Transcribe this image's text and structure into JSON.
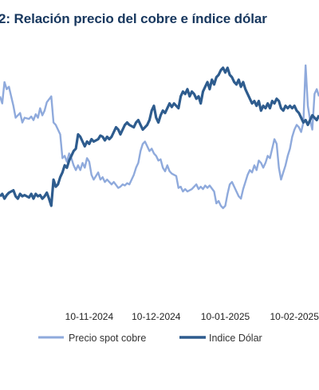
{
  "chart_data": {
    "type": "line",
    "title": "2: Relación precio del cobre e índice dólar",
    "x_tick_labels": [
      "10-11-2024",
      "10-12-2024",
      "10-01-2025",
      "10-02-2025"
    ],
    "x_tick_dates": [
      "2024-11-10",
      "2024-12-10",
      "2025-01-10",
      "2025-02-10"
    ],
    "xlim": [
      "2024-10-01",
      "2025-02-21"
    ],
    "y_axis_labels_visible": false,
    "grid": false,
    "legend_position": "bottom",
    "series": [
      {
        "name": "Precio spot cobre",
        "color": "#8FAADC",
        "points": [
          [
            "2024-10-01",
            0.8
          ],
          [
            "2024-10-02",
            0.74
          ],
          [
            "2024-10-03",
            0.92
          ],
          [
            "2024-10-04",
            0.86
          ],
          [
            "2024-10-05",
            0.88
          ],
          [
            "2024-10-07",
            0.72
          ],
          [
            "2024-10-08",
            0.62
          ],
          [
            "2024-10-10",
            0.66
          ],
          [
            "2024-10-11",
            0.58
          ],
          [
            "2024-10-12",
            0.62
          ],
          [
            "2024-10-14",
            0.61
          ],
          [
            "2024-10-15",
            0.63
          ],
          [
            "2024-10-16",
            0.6
          ],
          [
            "2024-10-17",
            0.65
          ],
          [
            "2024-10-18",
            0.62
          ],
          [
            "2024-10-19",
            0.7
          ],
          [
            "2024-10-20",
            0.64
          ],
          [
            "2024-10-21",
            0.68
          ],
          [
            "2024-10-22",
            0.75
          ],
          [
            "2024-10-24",
            0.8
          ],
          [
            "2024-10-25",
            0.58
          ],
          [
            "2024-10-26",
            0.56
          ],
          [
            "2024-10-27",
            0.52
          ],
          [
            "2024-10-28",
            0.48
          ],
          [
            "2024-10-29",
            0.28
          ],
          [
            "2024-10-30",
            0.3
          ],
          [
            "2024-10-31",
            0.25
          ],
          [
            "2024-11-01",
            0.32
          ],
          [
            "2024-11-02",
            0.28
          ],
          [
            "2024-11-03",
            0.22
          ],
          [
            "2024-11-04",
            0.18
          ],
          [
            "2024-11-05",
            0.22
          ],
          [
            "2024-11-06",
            0.18
          ],
          [
            "2024-11-07",
            0.24
          ],
          [
            "2024-11-08",
            0.2
          ],
          [
            "2024-11-09",
            0.28
          ],
          [
            "2024-11-10",
            0.25
          ],
          [
            "2024-11-11",
            0.14
          ],
          [
            "2024-11-12",
            0.1
          ],
          [
            "2024-11-14",
            0.16
          ],
          [
            "2024-11-15",
            0.1
          ],
          [
            "2024-11-16",
            0.12
          ],
          [
            "2024-11-17",
            0.08
          ],
          [
            "2024-11-18",
            0.1
          ],
          [
            "2024-11-20",
            0.06
          ],
          [
            "2024-11-21",
            0.08
          ],
          [
            "2024-11-23",
            0.03
          ],
          [
            "2024-11-24",
            0.04
          ],
          [
            "2024-11-25",
            0.06
          ],
          [
            "2024-11-26",
            0.05
          ],
          [
            "2024-11-27",
            0.07
          ],
          [
            "2024-11-28",
            0.06
          ],
          [
            "2024-11-29",
            0.1
          ],
          [
            "2024-11-30",
            0.14
          ],
          [
            "2024-12-01",
            0.2
          ],
          [
            "2024-12-02",
            0.24
          ],
          [
            "2024-12-03",
            0.34
          ],
          [
            "2024-12-04",
            0.4
          ],
          [
            "2024-12-05",
            0.42
          ],
          [
            "2024-12-06",
            0.38
          ],
          [
            "2024-12-07",
            0.34
          ],
          [
            "2024-12-08",
            0.36
          ],
          [
            "2024-12-09",
            0.32
          ],
          [
            "2024-12-10",
            0.3
          ],
          [
            "2024-12-11",
            0.26
          ],
          [
            "2024-12-12",
            0.27
          ],
          [
            "2024-12-13",
            0.2
          ],
          [
            "2024-12-14",
            0.17
          ],
          [
            "2024-12-15",
            0.22
          ],
          [
            "2024-12-16",
            0.17
          ],
          [
            "2024-12-17",
            0.15
          ],
          [
            "2024-12-19",
            0.13
          ],
          [
            "2024-12-20",
            0.03
          ],
          [
            "2024-12-21",
            0.04
          ],
          [
            "2024-12-22",
            0.0
          ],
          [
            "2024-12-23",
            0.02
          ],
          [
            "2024-12-24",
            0.0
          ],
          [
            "2024-12-26",
            0.02
          ],
          [
            "2024-12-27",
            0.04
          ],
          [
            "2024-12-28",
            0.06
          ],
          [
            "2024-12-29",
            0.02
          ],
          [
            "2024-12-30",
            0.04
          ],
          [
            "2024-12-31",
            0.02
          ],
          [
            "2025-01-01",
            0.05
          ],
          [
            "2025-01-02",
            0.03
          ],
          [
            "2025-01-03",
            0.05
          ],
          [
            "2025-01-05",
            0.0
          ],
          [
            "2025-01-06",
            -0.1
          ],
          [
            "2025-01-07",
            -0.08
          ],
          [
            "2025-01-08",
            -0.12
          ],
          [
            "2025-01-09",
            -0.14
          ],
          [
            "2025-01-10",
            -0.12
          ],
          [
            "2025-01-11",
            -0.02
          ],
          [
            "2025-01-12",
            0.06
          ],
          [
            "2025-01-13",
            0.08
          ],
          [
            "2025-01-14",
            0.04
          ],
          [
            "2025-01-15",
            0.0
          ],
          [
            "2025-01-16",
            -0.04
          ],
          [
            "2025-01-17",
            -0.06
          ],
          [
            "2025-01-18",
            0.02
          ],
          [
            "2025-01-19",
            0.08
          ],
          [
            "2025-01-20",
            0.14
          ],
          [
            "2025-01-21",
            0.18
          ],
          [
            "2025-01-22",
            0.16
          ],
          [
            "2025-01-23",
            0.22
          ],
          [
            "2025-01-24",
            0.18
          ],
          [
            "2025-01-25",
            0.26
          ],
          [
            "2025-01-26",
            0.24
          ],
          [
            "2025-01-27",
            0.2
          ],
          [
            "2025-01-28",
            0.24
          ],
          [
            "2025-01-29",
            0.3
          ],
          [
            "2025-01-30",
            0.28
          ],
          [
            "2025-01-31",
            0.36
          ],
          [
            "2025-02-01",
            0.44
          ],
          [
            "2025-02-02",
            0.4
          ],
          [
            "2025-02-03",
            0.2
          ],
          [
            "2025-02-04",
            0.1
          ],
          [
            "2025-02-05",
            0.16
          ],
          [
            "2025-02-06",
            0.22
          ],
          [
            "2025-02-07",
            0.3
          ],
          [
            "2025-02-08",
            0.36
          ],
          [
            "2025-02-09",
            0.46
          ],
          [
            "2025-02-10",
            0.52
          ],
          [
            "2025-02-11",
            0.56
          ],
          [
            "2025-02-12",
            0.54
          ],
          [
            "2025-02-13",
            0.5
          ],
          [
            "2025-02-14",
            0.58
          ],
          [
            "2025-02-15",
            1.06
          ],
          [
            "2025-02-16",
            0.72
          ],
          [
            "2025-02-17",
            0.6
          ],
          [
            "2025-02-18",
            0.52
          ],
          [
            "2025-02-19",
            0.82
          ],
          [
            "2025-02-20",
            0.86
          ],
          [
            "2025-02-21",
            0.8
          ]
        ]
      },
      {
        "name": "Indice Dólar",
        "color": "#2E5C8E",
        "points": [
          [
            "2024-10-01",
            -0.04
          ],
          [
            "2024-10-02",
            -0.02
          ],
          [
            "2024-10-03",
            -0.06
          ],
          [
            "2024-10-04",
            -0.03
          ],
          [
            "2024-10-05",
            -0.01
          ],
          [
            "2024-10-07",
            0.01
          ],
          [
            "2024-10-08",
            -0.04
          ],
          [
            "2024-10-09",
            -0.06
          ],
          [
            "2024-10-10",
            -0.02
          ],
          [
            "2024-10-11",
            -0.04
          ],
          [
            "2024-10-12",
            -0.03
          ],
          [
            "2024-10-14",
            -0.05
          ],
          [
            "2024-10-15",
            -0.02
          ],
          [
            "2024-10-16",
            -0.06
          ],
          [
            "2024-10-17",
            -0.02
          ],
          [
            "2024-10-18",
            -0.04
          ],
          [
            "2024-10-19",
            -0.03
          ],
          [
            "2024-10-20",
            -0.06
          ],
          [
            "2024-10-21",
            -0.04
          ],
          [
            "2024-10-22",
            -0.01
          ],
          [
            "2024-10-23",
            -0.06
          ],
          [
            "2024-10-24",
            -0.12
          ],
          [
            "2024-10-25",
            0.1
          ],
          [
            "2024-10-26",
            0.04
          ],
          [
            "2024-10-27",
            0.06
          ],
          [
            "2024-10-28",
            0.12
          ],
          [
            "2024-10-29",
            0.16
          ],
          [
            "2024-10-30",
            0.22
          ],
          [
            "2024-10-31",
            0.2
          ],
          [
            "2024-11-01",
            0.26
          ],
          [
            "2024-11-02",
            0.3
          ],
          [
            "2024-11-03",
            0.34
          ],
          [
            "2024-11-04",
            0.36
          ],
          [
            "2024-11-05",
            0.48
          ],
          [
            "2024-11-06",
            0.46
          ],
          [
            "2024-11-07",
            0.42
          ],
          [
            "2024-11-08",
            0.38
          ],
          [
            "2024-11-09",
            0.42
          ],
          [
            "2024-11-10",
            0.4
          ],
          [
            "2024-11-11",
            0.44
          ],
          [
            "2024-11-12",
            0.42
          ],
          [
            "2024-11-14",
            0.44
          ],
          [
            "2024-11-15",
            0.47
          ],
          [
            "2024-11-16",
            0.46
          ],
          [
            "2024-11-17",
            0.43
          ],
          [
            "2024-11-18",
            0.46
          ],
          [
            "2024-11-19",
            0.44
          ],
          [
            "2024-11-20",
            0.46
          ],
          [
            "2024-11-21",
            0.5
          ],
          [
            "2024-11-22",
            0.54
          ],
          [
            "2024-11-23",
            0.52
          ],
          [
            "2024-11-24",
            0.48
          ],
          [
            "2024-11-25",
            0.52
          ],
          [
            "2024-11-26",
            0.56
          ],
          [
            "2024-11-27",
            0.58
          ],
          [
            "2024-11-28",
            0.56
          ],
          [
            "2024-11-29",
            0.55
          ],
          [
            "2024-11-30",
            0.54
          ],
          [
            "2024-12-01",
            0.58
          ],
          [
            "2024-12-02",
            0.6
          ],
          [
            "2024-12-03",
            0.56
          ],
          [
            "2024-12-04",
            0.52
          ],
          [
            "2024-12-05",
            0.54
          ],
          [
            "2024-12-06",
            0.56
          ],
          [
            "2024-12-07",
            0.6
          ],
          [
            "2024-12-08",
            0.68
          ],
          [
            "2024-12-09",
            0.72
          ],
          [
            "2024-12-10",
            0.62
          ],
          [
            "2024-12-11",
            0.58
          ],
          [
            "2024-12-12",
            0.64
          ],
          [
            "2024-12-13",
            0.68
          ],
          [
            "2024-12-14",
            0.66
          ],
          [
            "2024-12-15",
            0.7
          ],
          [
            "2024-12-16",
            0.74
          ],
          [
            "2024-12-17",
            0.71
          ],
          [
            "2024-12-18",
            0.74
          ],
          [
            "2024-12-19",
            0.72
          ],
          [
            "2024-12-20",
            0.7
          ],
          [
            "2024-12-21",
            0.8
          ],
          [
            "2024-12-22",
            0.84
          ],
          [
            "2024-12-23",
            0.82
          ],
          [
            "2024-12-24",
            0.86
          ],
          [
            "2024-12-25",
            0.8
          ],
          [
            "2024-12-26",
            0.84
          ],
          [
            "2024-12-27",
            0.82
          ],
          [
            "2024-12-28",
            0.78
          ],
          [
            "2024-12-29",
            0.8
          ],
          [
            "2024-12-30",
            0.74
          ],
          [
            "2024-12-31",
            0.84
          ],
          [
            "2025-01-01",
            0.88
          ],
          [
            "2025-01-02",
            0.92
          ],
          [
            "2025-01-03",
            0.86
          ],
          [
            "2025-01-04",
            0.94
          ],
          [
            "2025-01-05",
            0.9
          ],
          [
            "2025-01-06",
            0.96
          ],
          [
            "2025-01-07",
            0.98
          ],
          [
            "2025-01-08",
            1.02
          ],
          [
            "2025-01-09",
            1.04
          ],
          [
            "2025-01-10",
            1.0
          ],
          [
            "2025-01-11",
            1.04
          ],
          [
            "2025-01-12",
            0.98
          ],
          [
            "2025-01-13",
            0.96
          ],
          [
            "2025-01-14",
            0.92
          ],
          [
            "2025-01-15",
            0.9
          ],
          [
            "2025-01-16",
            0.94
          ],
          [
            "2025-01-17",
            0.88
          ],
          [
            "2025-01-18",
            0.92
          ],
          [
            "2025-01-19",
            0.86
          ],
          [
            "2025-01-20",
            0.82
          ],
          [
            "2025-01-21",
            0.78
          ],
          [
            "2025-01-22",
            0.74
          ],
          [
            "2025-01-23",
            0.76
          ],
          [
            "2025-01-24",
            0.72
          ],
          [
            "2025-01-25",
            0.76
          ],
          [
            "2025-01-26",
            0.68
          ],
          [
            "2025-01-27",
            0.72
          ],
          [
            "2025-01-28",
            0.7
          ],
          [
            "2025-01-29",
            0.74
          ],
          [
            "2025-01-30",
            0.7
          ],
          [
            "2025-01-31",
            0.76
          ],
          [
            "2025-02-01",
            0.74
          ],
          [
            "2025-02-02",
            0.78
          ],
          [
            "2025-02-03",
            0.76
          ],
          [
            "2025-02-04",
            0.7
          ],
          [
            "2025-02-05",
            0.68
          ],
          [
            "2025-02-06",
            0.72
          ],
          [
            "2025-02-07",
            0.7
          ],
          [
            "2025-02-08",
            0.72
          ],
          [
            "2025-02-09",
            0.7
          ],
          [
            "2025-02-10",
            0.72
          ],
          [
            "2025-02-11",
            0.68
          ],
          [
            "2025-02-12",
            0.66
          ],
          [
            "2025-02-13",
            0.62
          ],
          [
            "2025-02-14",
            0.58
          ],
          [
            "2025-02-15",
            0.6
          ],
          [
            "2025-02-16",
            0.56
          ],
          [
            "2025-02-17",
            0.6
          ],
          [
            "2025-02-18",
            0.64
          ],
          [
            "2025-02-19",
            0.62
          ],
          [
            "2025-02-20",
            0.6
          ],
          [
            "2025-02-21",
            0.64
          ]
        ]
      }
    ]
  }
}
